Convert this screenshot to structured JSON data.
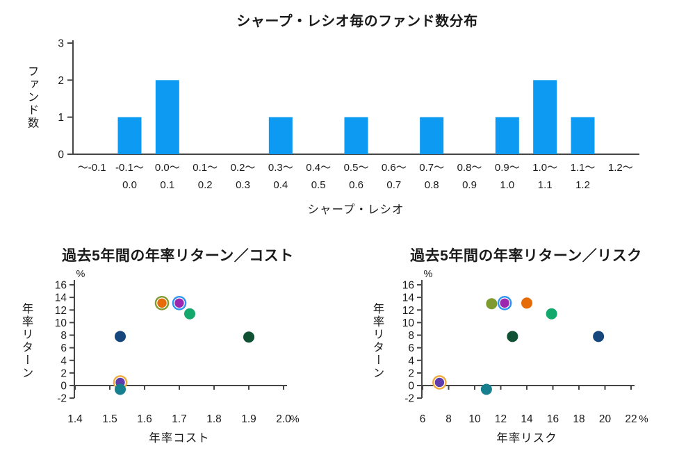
{
  "colors": {
    "bar_blue": "#0d9af2",
    "axis": "#454545",
    "text": "#1a1a1a",
    "navy": "#16477c",
    "orange": "#e56c09",
    "olive": "#7f9a2e",
    "purple": "#9c28b0",
    "light_blue_ring": "#2f94f0",
    "green": "#13a96c",
    "dark_green": "#0f5132",
    "violet": "#5f3cab",
    "amber_ring": "#efab3d",
    "teal": "#17808f"
  },
  "chart_data": [
    {
      "type": "bar",
      "title": "シャープ・レシオ毎のファンド数分布",
      "xlabel": "シャープ・レシオ",
      "ylabel": "ファンド数",
      "ylim": [
        0,
        3
      ],
      "yticks": [
        "0",
        "1",
        "2",
        "3"
      ],
      "grid": false,
      "bar_color": "#0d9af2",
      "categories_line1": [
        "～-0.1",
        "-0.1～",
        "0.0～",
        "0.1～",
        "0.2～",
        "0.3～",
        "0.4～",
        "0.5～",
        "0.6～",
        "0.7～",
        "0.8～",
        "0.9～",
        "1.0～",
        "1.1～",
        "1.2～"
      ],
      "categories_line2": [
        "",
        "0.0",
        "0.1",
        "0.2",
        "0.3",
        "0.4",
        "0.5",
        "0.6",
        "0.7",
        "0.8",
        "0.9",
        "1.0",
        "1.1",
        "1.2",
        ""
      ],
      "values": [
        0,
        1,
        2,
        0,
        0,
        1,
        0,
        1,
        0,
        1,
        0,
        1,
        2,
        1,
        0
      ]
    },
    {
      "type": "scatter",
      "title": "過去5年間の年率リターン／コスト",
      "xlabel": "年率コスト",
      "ylabel": "年率リターン",
      "x_unit": "%",
      "y_unit": "%",
      "xlim": [
        1.4,
        2.0
      ],
      "xticks": [
        "1.4",
        "1.5",
        "1.6",
        "1.7",
        "1.8",
        "1.9",
        "2.0"
      ],
      "ylim": [
        -2,
        16
      ],
      "yticks": [
        "16",
        "14",
        "12",
        "10",
        "8",
        "6",
        "4",
        "2",
        "0",
        "-2"
      ],
      "grid": false,
      "points": [
        {
          "x": 1.65,
          "y": 13.1,
          "color": "#e56c09",
          "ring": "#7f9a2e"
        },
        {
          "x": 1.7,
          "y": 13.1,
          "color": "#9c28b0",
          "ring": "#2f94f0"
        },
        {
          "x": 1.73,
          "y": 11.4,
          "color": "#13a96c"
        },
        {
          "x": 1.53,
          "y": 7.8,
          "color": "#16477c"
        },
        {
          "x": 1.9,
          "y": 7.7,
          "color": "#0f5132"
        },
        {
          "x": 1.53,
          "y": 0.5,
          "color": "#5f3cab",
          "ring": "#efab3d"
        },
        {
          "x": 1.53,
          "y": -0.6,
          "color": "#17808f"
        }
      ]
    },
    {
      "type": "scatter",
      "title": "過去5年間の年率リターン／リスク",
      "xlabel": "年率リスク",
      "ylabel": "年率リターン",
      "x_unit": "%",
      "y_unit": "%",
      "xlim": [
        6,
        22
      ],
      "xticks": [
        "6",
        "8",
        "10",
        "12",
        "14",
        "16",
        "18",
        "20",
        "22"
      ],
      "ylim": [
        -2,
        16
      ],
      "yticks": [
        "16",
        "14",
        "12",
        "10",
        "8",
        "6",
        "4",
        "2",
        "0",
        "-2"
      ],
      "grid": false,
      "points": [
        {
          "x": 11.3,
          "y": 13.0,
          "color": "#7f9a2e"
        },
        {
          "x": 12.3,
          "y": 13.1,
          "color": "#9c28b0",
          "ring": "#2f94f0"
        },
        {
          "x": 14.0,
          "y": 13.1,
          "color": "#e56c09"
        },
        {
          "x": 15.9,
          "y": 11.4,
          "color": "#13a96c"
        },
        {
          "x": 12.9,
          "y": 7.8,
          "color": "#0f5132"
        },
        {
          "x": 19.5,
          "y": 7.8,
          "color": "#16477c"
        },
        {
          "x": 7.3,
          "y": 0.5,
          "color": "#5f3cab",
          "ring": "#efab3d"
        },
        {
          "x": 10.9,
          "y": -0.6,
          "color": "#17808f"
        }
      ]
    }
  ]
}
